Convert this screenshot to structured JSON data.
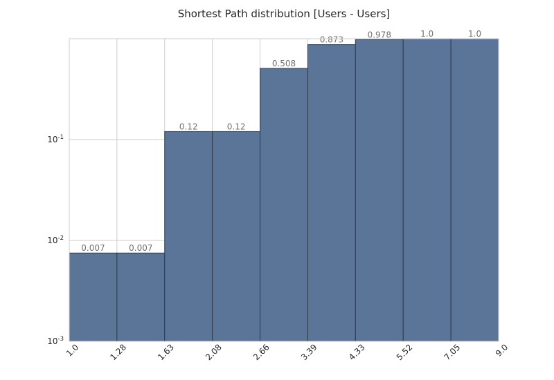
{
  "chart_data": {
    "type": "bar",
    "title": "Shortest Path distribution [Users - Users]",
    "xlabel": "",
    "ylabel": "",
    "y_scale": "log",
    "ylim": [
      0.001,
      1.0
    ],
    "grid": true,
    "x_tick_labels": [
      "1.0",
      "1.28",
      "1.63",
      "2.08",
      "2.66",
      "3.39",
      "4.33",
      "5.52",
      "7.05",
      "9.0"
    ],
    "y_ticks": [
      {
        "base": "10",
        "exp": "-3",
        "value": 0.001
      },
      {
        "base": "10",
        "exp": "-2",
        "value": 0.01
      },
      {
        "base": "10",
        "exp": "-1",
        "value": 0.1
      }
    ],
    "bars": [
      {
        "value": 0.0075,
        "label": "0.007"
      },
      {
        "value": 0.0075,
        "label": "0.007"
      },
      {
        "value": 0.12,
        "label": "0.12"
      },
      {
        "value": 0.12,
        "label": "0.12"
      },
      {
        "value": 0.508,
        "label": "0.508"
      },
      {
        "value": 0.873,
        "label": "0.873"
      },
      {
        "value": 0.978,
        "label": "0.978"
      },
      {
        "value": 1.0,
        "label": "1.0"
      },
      {
        "value": 1.0,
        "label": "1.0"
      }
    ],
    "colors": {
      "bar_fill": "#5b7599",
      "bar_edge": "#2f3a48",
      "grid": "#cccccc",
      "axis_frame": "#cccccc"
    }
  }
}
